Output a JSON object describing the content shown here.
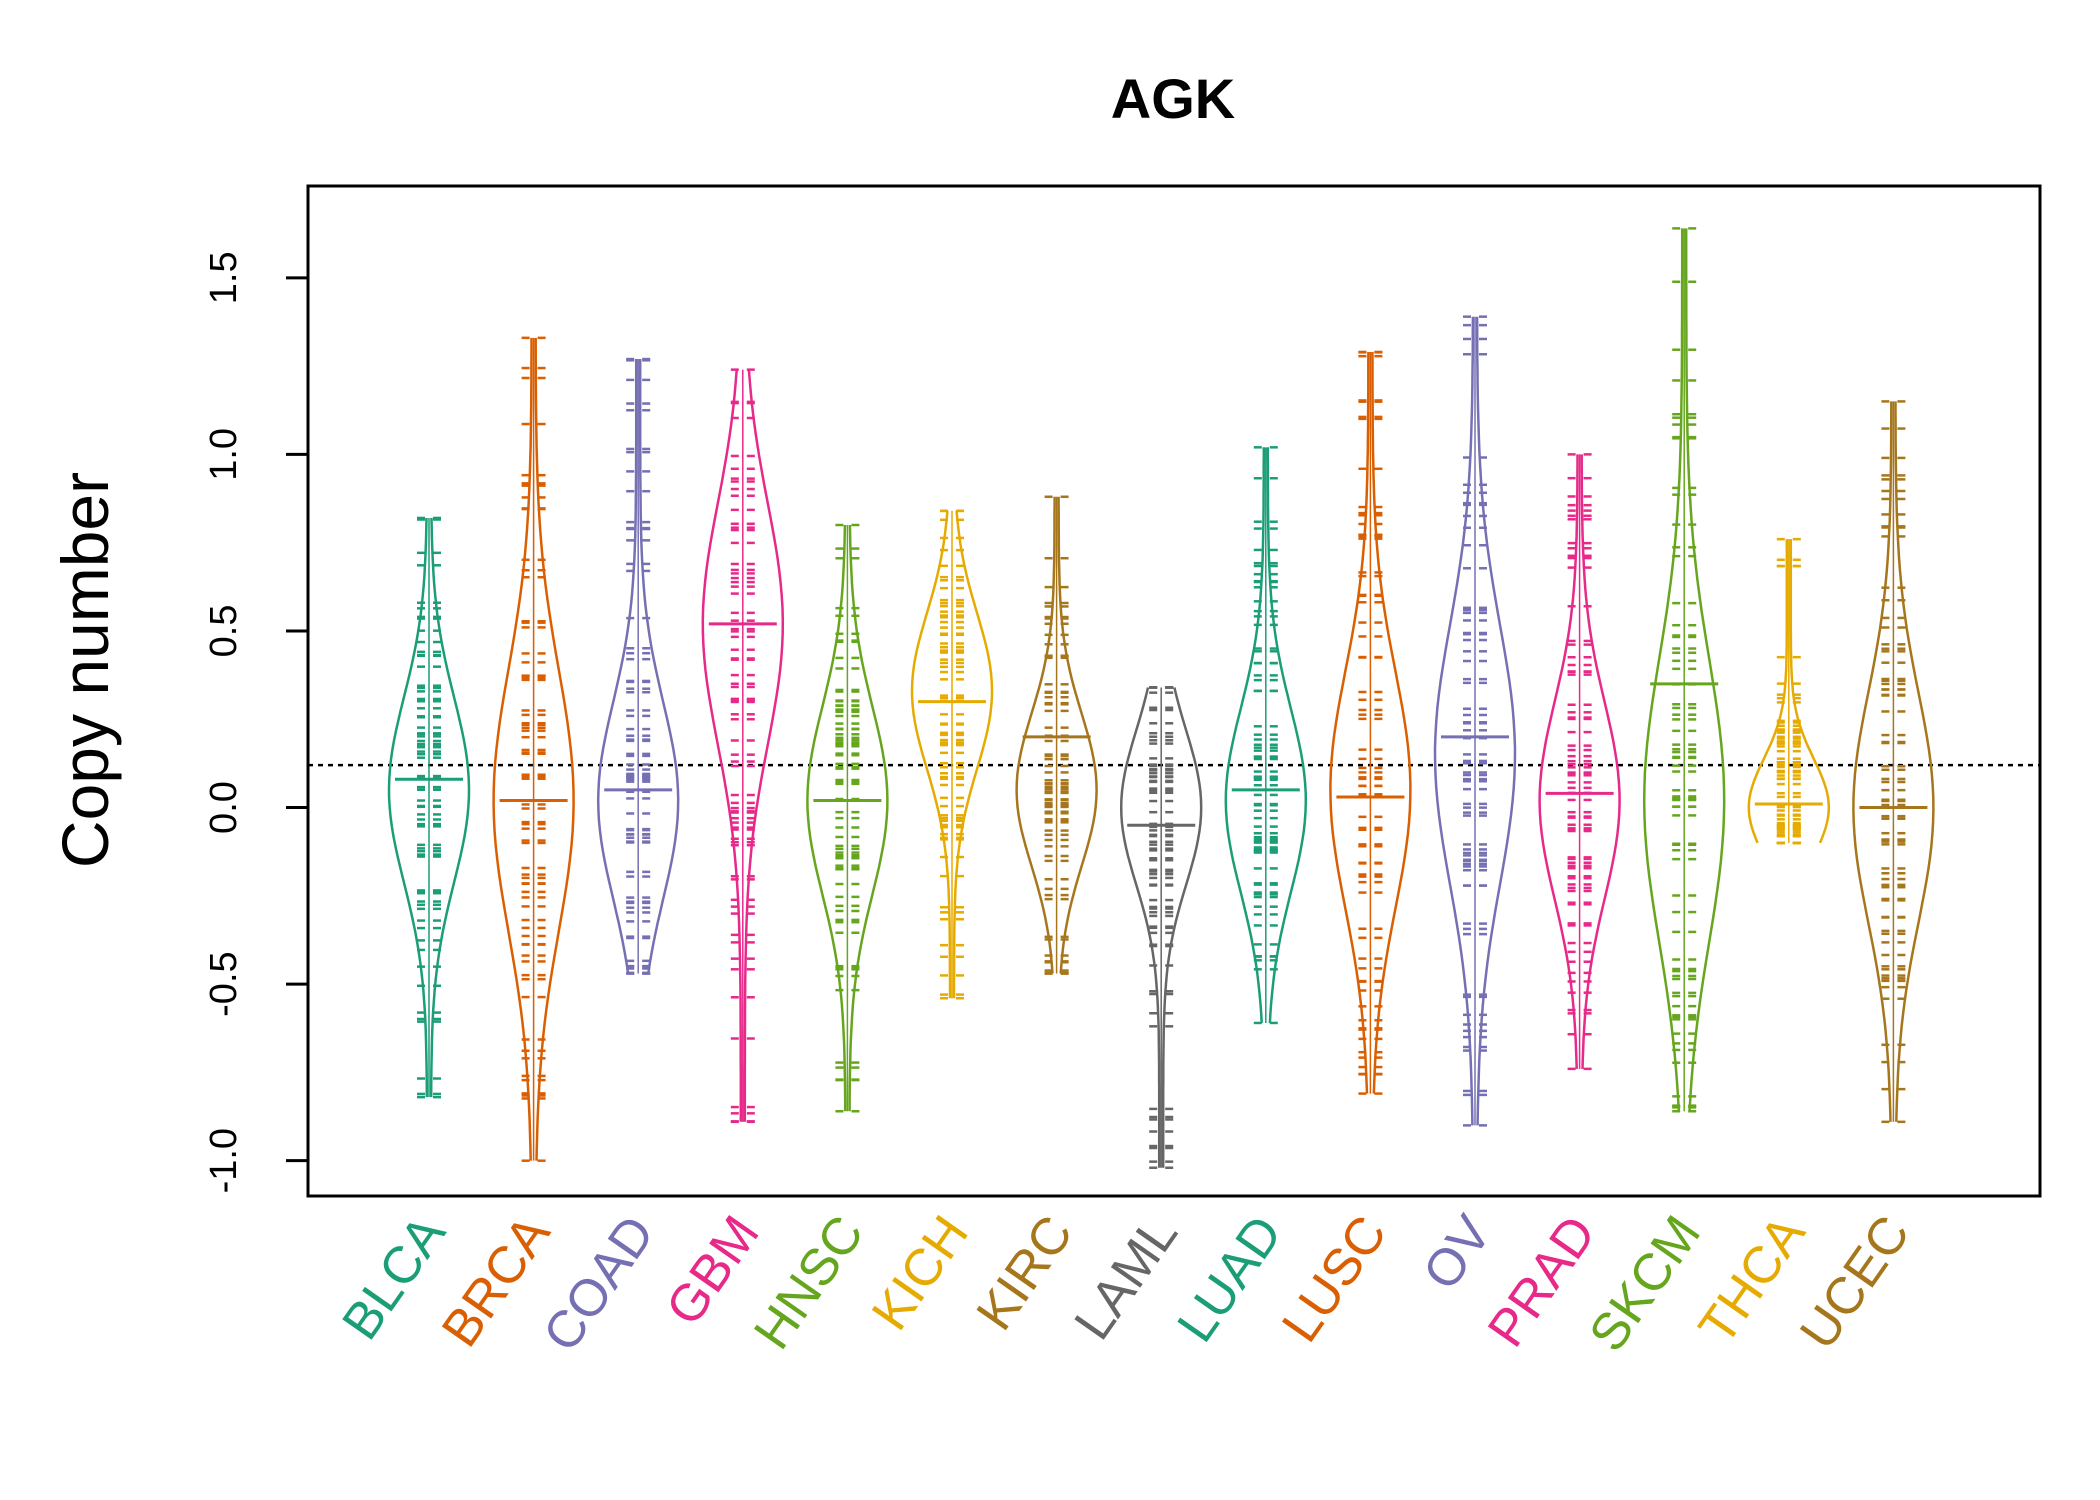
{
  "chart_data": {
    "type": "beanplot",
    "title": "AGK",
    "xlabel": "",
    "ylabel": "Copy number",
    "ylim": [
      -1.1,
      1.76
    ],
    "yticks": [
      "-1.0",
      "-0.5",
      "0.0",
      "0.5",
      "1.0",
      "1.5"
    ],
    "reference_line": 0.12,
    "categories": [
      "BLCA",
      "BRCA",
      "COAD",
      "GBM",
      "HNSC",
      "KICH",
      "KIRC",
      "LAML",
      "LUAD",
      "LUSC",
      "OV",
      "PRAD",
      "SKCM",
      "THCA",
      "UCEC"
    ],
    "colors": [
      "#1B9E77",
      "#D95F02",
      "#7570B3",
      "#E7298A",
      "#66A61E",
      "#E6AB02",
      "#A6761D",
      "#666666",
      "#1B9E77",
      "#D95F02",
      "#7570B3",
      "#E7298A",
      "#66A61E",
      "#E6AB02",
      "#A6761D"
    ],
    "series": [
      {
        "min": -0.82,
        "max": 0.82,
        "center": 0.05,
        "mean": 0.08
      },
      {
        "min": -1.0,
        "max": 1.33,
        "center": 0.02,
        "mean": 0.02
      },
      {
        "min": -0.47,
        "max": 1.27,
        "center": 0.02,
        "mean": 0.05
      },
      {
        "min": -0.89,
        "max": 1.24,
        "center": 0.52,
        "mean": 0.52
      },
      {
        "min": -0.86,
        "max": 0.8,
        "center": 0.02,
        "mean": 0.02
      },
      {
        "min": -0.54,
        "max": 0.84,
        "center": 0.33,
        "mean": 0.3
      },
      {
        "min": -0.47,
        "max": 0.88,
        "center": 0.05,
        "mean": 0.2
      },
      {
        "min": -1.02,
        "max": 0.34,
        "center": 0.0,
        "mean": -0.05
      },
      {
        "min": -0.61,
        "max": 1.02,
        "center": 0.02,
        "mean": 0.05
      },
      {
        "min": -0.81,
        "max": 1.29,
        "center": 0.05,
        "mean": 0.03
      },
      {
        "min": -0.9,
        "max": 1.39,
        "center": 0.15,
        "mean": 0.2
      },
      {
        "min": -0.74,
        "max": 1.0,
        "center": 0.02,
        "mean": 0.04
      },
      {
        "min": -0.86,
        "max": 1.64,
        "center": 0.02,
        "mean": 0.35
      },
      {
        "min": -0.1,
        "max": 0.76,
        "center": 0.0,
        "mean": 0.01
      },
      {
        "min": -0.89,
        "max": 1.15,
        "center": 0.0,
        "mean": 0.0
      }
    ]
  }
}
